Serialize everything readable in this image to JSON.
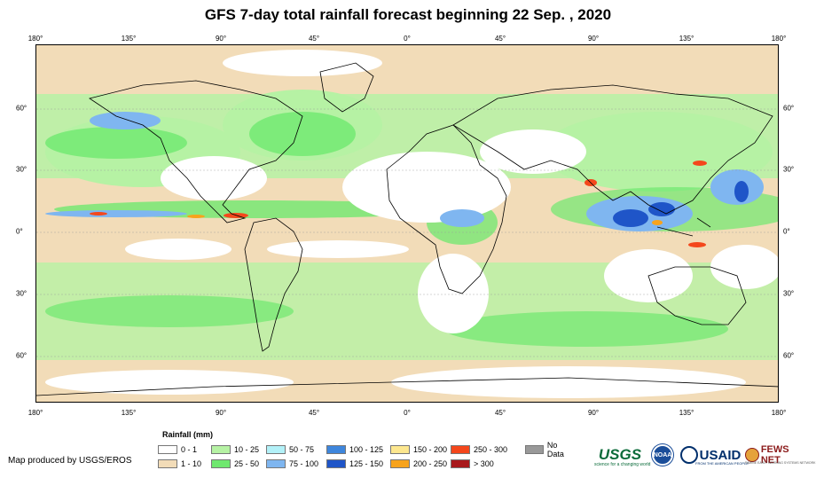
{
  "title": "GFS 7-day total rainfall forecast beginning 22 Sep. , 2020",
  "longitude_labels": [
    "180°",
    "135°",
    "90°",
    "45°",
    "0°",
    "45°",
    "90°",
    "135°",
    "180°"
  ],
  "latitude_labels": [
    "60°",
    "30°",
    "0°",
    "30°",
    "60°"
  ],
  "legend": {
    "title": "Rainfall (mm)",
    "items": [
      {
        "label": "0 - 1",
        "color": "#ffffff"
      },
      {
        "label": "1 - 10",
        "color": "#f2dcb8"
      },
      {
        "label": "10 - 25",
        "color": "#b6f2a4"
      },
      {
        "label": "25 - 50",
        "color": "#6fe86f"
      },
      {
        "label": "50 - 75",
        "color": "#b3f1f8"
      },
      {
        "label": "75 - 100",
        "color": "#7fb6f0"
      },
      {
        "label": "100 - 125",
        "color": "#3e86dc"
      },
      {
        "label": "125 - 150",
        "color": "#1f55c8"
      },
      {
        "label": "150 - 200",
        "color": "#fde78f"
      },
      {
        "label": "200 - 250",
        "color": "#f7a31c"
      },
      {
        "label": "250 - 300",
        "color": "#f4471c"
      },
      {
        "label": "> 300",
        "color": "#a8191c"
      },
      {
        "label": "No Data",
        "color": "#999999"
      }
    ]
  },
  "credit": "Map produced by USGS/EROS",
  "logos": {
    "usgs": "USGS",
    "usgs_tagline": "science for a changing world",
    "noaa": "NOAA",
    "usaid": "USAID",
    "usaid_tagline": "FROM THE AMERICAN PEOPLE",
    "fews": "FEWS NET",
    "fews_tagline": "FAMINE EARLY WARNING SYSTEMS NETWORK"
  }
}
